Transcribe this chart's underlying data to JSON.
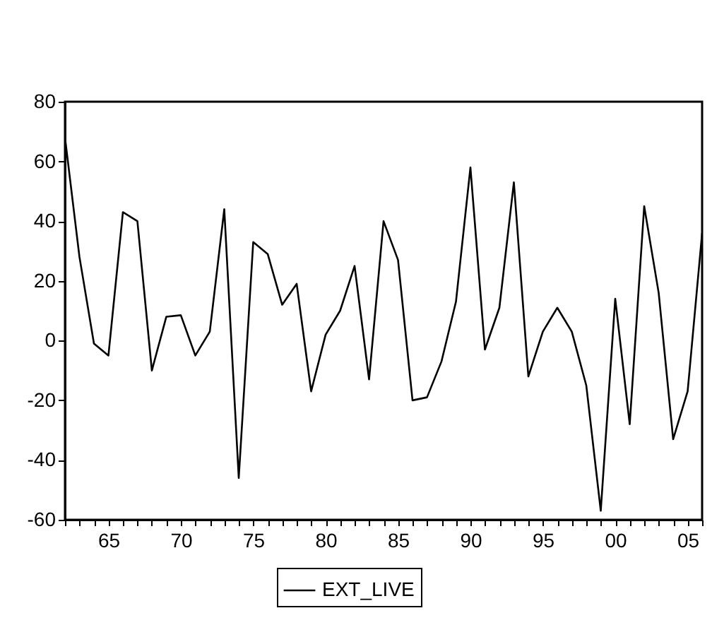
{
  "chart_data": {
    "type": "line",
    "x": [
      1962,
      1963,
      1964,
      1965,
      1966,
      1967,
      1968,
      1969,
      1970,
      1971,
      1972,
      1973,
      1974,
      1975,
      1976,
      1977,
      1978,
      1979,
      1980,
      1981,
      1982,
      1983,
      1984,
      1985,
      1986,
      1987,
      1988,
      1989,
      1990,
      1991,
      1992,
      1993,
      1994,
      1995,
      1996,
      1997,
      1998,
      1999,
      2000,
      2001,
      2002,
      2003,
      2004,
      2005,
      2006
    ],
    "series": [
      {
        "name": "EXT_LIVE",
        "color": "#000000",
        "values": [
          68,
          28,
          -1,
          -5,
          43,
          40,
          -10,
          8,
          8.5,
          -5,
          3,
          44,
          -46,
          33,
          29,
          12,
          19,
          -17,
          2,
          10,
          25,
          -13,
          40,
          27,
          -20,
          -19,
          -7,
          13,
          58,
          -3,
          11,
          53,
          -12,
          3,
          11,
          3,
          -15,
          -57,
          14,
          -28,
          45,
          16,
          -33,
          -17,
          36
        ]
      }
    ],
    "xlim": [
      1962,
      2006
    ],
    "xticks": [
      {
        "value": 1962,
        "label": null
      },
      {
        "value": 1963,
        "label": null
      },
      {
        "value": 1964,
        "label": null
      },
      {
        "value": 1965,
        "label": "65"
      },
      {
        "value": 1966,
        "label": null
      },
      {
        "value": 1967,
        "label": null
      },
      {
        "value": 1968,
        "label": null
      },
      {
        "value": 1969,
        "label": null
      },
      {
        "value": 1970,
        "label": "70"
      },
      {
        "value": 1971,
        "label": null
      },
      {
        "value": 1972,
        "label": null
      },
      {
        "value": 1973,
        "label": null
      },
      {
        "value": 1974,
        "label": null
      },
      {
        "value": 1975,
        "label": "75"
      },
      {
        "value": 1976,
        "label": null
      },
      {
        "value": 1977,
        "label": null
      },
      {
        "value": 1978,
        "label": null
      },
      {
        "value": 1979,
        "label": null
      },
      {
        "value": 1980,
        "label": "80"
      },
      {
        "value": 1981,
        "label": null
      },
      {
        "value": 1982,
        "label": null
      },
      {
        "value": 1983,
        "label": null
      },
      {
        "value": 1984,
        "label": null
      },
      {
        "value": 1985,
        "label": "85"
      },
      {
        "value": 1986,
        "label": null
      },
      {
        "value": 1987,
        "label": null
      },
      {
        "value": 1988,
        "label": null
      },
      {
        "value": 1989,
        "label": null
      },
      {
        "value": 1990,
        "label": "90"
      },
      {
        "value": 1991,
        "label": null
      },
      {
        "value": 1992,
        "label": null
      },
      {
        "value": 1993,
        "label": null
      },
      {
        "value": 1994,
        "label": null
      },
      {
        "value": 1995,
        "label": "95"
      },
      {
        "value": 1996,
        "label": null
      },
      {
        "value": 1997,
        "label": null
      },
      {
        "value": 1998,
        "label": null
      },
      {
        "value": 1999,
        "label": null
      },
      {
        "value": 2000,
        "label": "00"
      },
      {
        "value": 2001,
        "label": null
      },
      {
        "value": 2002,
        "label": null
      },
      {
        "value": 2003,
        "label": null
      },
      {
        "value": 2004,
        "label": null
      },
      {
        "value": 2005,
        "label": "05"
      },
      {
        "value": 2006,
        "label": null
      }
    ],
    "ylim": [
      -60,
      80
    ],
    "yticks": [
      -60,
      -40,
      -20,
      0,
      20,
      40,
      60,
      80
    ],
    "grid": false,
    "legend": "bottom",
    "marker": "none",
    "line_style": "solid"
  }
}
